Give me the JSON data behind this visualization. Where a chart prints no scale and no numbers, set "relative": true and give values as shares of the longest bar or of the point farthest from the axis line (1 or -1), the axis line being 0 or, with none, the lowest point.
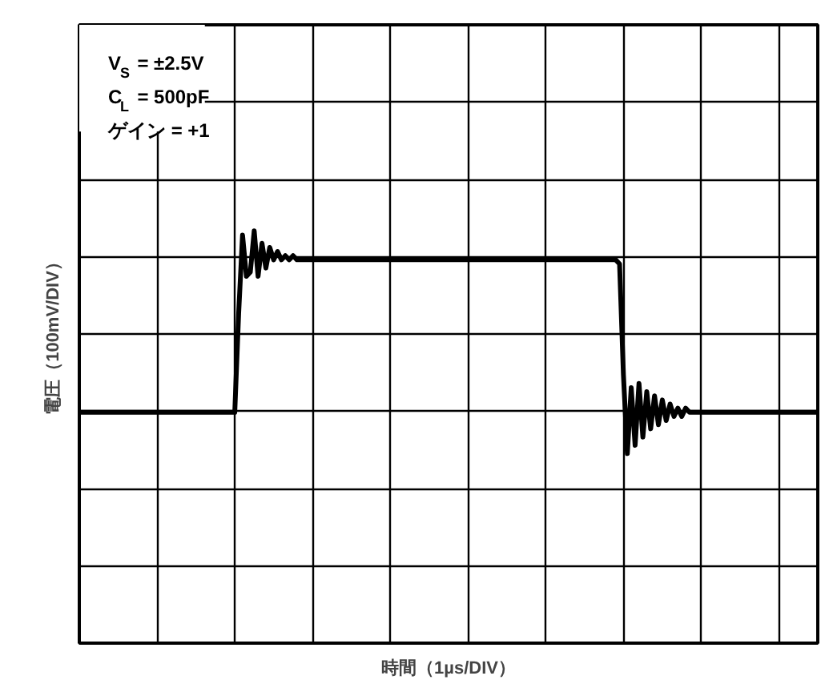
{
  "chart_data": {
    "type": "line",
    "relative": true,
    "xlabel": "時間（1µs/DIV）",
    "ylabel": "電圧（100mV/DIV）",
    "annotations": [
      "V$_{S}$ = ±2.5V",
      "C$_{L}$ = 500pF",
      "ゲイン = +1"
    ],
    "categories": [
      null,
      null,
      null,
      null,
      null,
      null,
      null,
      null,
      null,
      null,
      null,
      null,
      null,
      null,
      null,
      null,
      null,
      null,
      null,
      null,
      null,
      null,
      null,
      null,
      null,
      null,
      null,
      null,
      null,
      null,
      null,
      null,
      null,
      null,
      null,
      null,
      null,
      null,
      null,
      null,
      null,
      null,
      null,
      null,
      null,
      null,
      null,
      null,
      null,
      null,
      null,
      null,
      null,
      null,
      null,
      null,
      null,
      null,
      null,
      null,
      null,
      null,
      null,
      null,
      null,
      null,
      null,
      null,
      null,
      null,
      null,
      null,
      null,
      null,
      null,
      null,
      null,
      null,
      null,
      null,
      null,
      null,
      null,
      null,
      null,
      null,
      null,
      null,
      null,
      null,
      null,
      null,
      null,
      null,
      null,
      null,
      null,
      null,
      null,
      null,
      null,
      null,
      null,
      null,
      null,
      null,
      null,
      null,
      null,
      null,
      null,
      null,
      null,
      null,
      null,
      null,
      null,
      null,
      null,
      null,
      null,
      null,
      null,
      null,
      null,
      null,
      null,
      null,
      null,
      null,
      null,
      null,
      null,
      null,
      null,
      null,
      null,
      null,
      null,
      null,
      null,
      null,
      null,
      null,
      null,
      null,
      null,
      null,
      null,
      null,
      null,
      null,
      null,
      null,
      null,
      null,
      null,
      null,
      null,
      null,
      null,
      null,
      null,
      null,
      null,
      null,
      null,
      null,
      null,
      null,
      null,
      null,
      null,
      null,
      null,
      null,
      null,
      null,
      null,
      null,
      null,
      null,
      null,
      null,
      null,
      null,
      null,
      null,
      null,
      null,
      null
    ],
    "series": [
      {
        "color": "#000000",
        "values": [
          0.56,
          0.56,
          0.56,
          0.56,
          0.56,
          0.56,
          0.56,
          0.56,
          0.56,
          0.56,
          0.56,
          0.56,
          0.56,
          0.56,
          0.56,
          0.56,
          0.56,
          0.56,
          0.56,
          0.56,
          0.56,
          0.56,
          0.56,
          0.56,
          0.56,
          0.56,
          0.56,
          0.56,
          0.56,
          0.56,
          0.56,
          0.56,
          0.56,
          0.56,
          0.56,
          0.56,
          0.56,
          0.56,
          0.56,
          0.56,
          0.56,
          0.8,
          0.99,
          0.89,
          0.9,
          1.0,
          0.89,
          0.97,
          0.91,
          0.96,
          0.93,
          0.95,
          0.93,
          0.94,
          0.93,
          0.94,
          0.93,
          0.93,
          0.93,
          0.93,
          0.93,
          0.93,
          0.93,
          0.93,
          0.93,
          0.93,
          0.93,
          0.93,
          0.93,
          0.93,
          0.93,
          0.93,
          0.93,
          0.93,
          0.93,
          0.93,
          0.93,
          0.93,
          0.93,
          0.93,
          0.93,
          0.93,
          0.93,
          0.93,
          0.93,
          0.93,
          0.93,
          0.93,
          0.93,
          0.93,
          0.93,
          0.93,
          0.93,
          0.93,
          0.93,
          0.93,
          0.93,
          0.93,
          0.93,
          0.93,
          0.93,
          0.93,
          0.93,
          0.93,
          0.93,
          0.93,
          0.93,
          0.93,
          0.93,
          0.93,
          0.93,
          0.93,
          0.93,
          0.93,
          0.93,
          0.93,
          0.93,
          0.93,
          0.93,
          0.93,
          0.93,
          0.93,
          0.93,
          0.93,
          0.93,
          0.93,
          0.93,
          0.93,
          0.93,
          0.93,
          0.93,
          0.93,
          0.93,
          0.93,
          0.93,
          0.93,
          0.93,
          0.93,
          0.93,
          0.92,
          0.65,
          0.46,
          0.62,
          0.48,
          0.63,
          0.5,
          0.61,
          0.52,
          0.6,
          0.53,
          0.59,
          0.54,
          0.58,
          0.55,
          0.57,
          0.55,
          0.57,
          0.56,
          0.56,
          0.56,
          0.56,
          0.56,
          0.56,
          0.56,
          0.56,
          0.56,
          0.56,
          0.56,
          0.56,
          0.56,
          0.56,
          0.56,
          0.56,
          0.56,
          0.56,
          0.56,
          0.56,
          0.56,
          0.56,
          0.56,
          0.56,
          0.56,
          0.56,
          0.56,
          0.56,
          0.56,
          0.56,
          0.56,
          0.56,
          0.56,
          0.56
        ]
      }
    ],
    "grid": true,
    "marker": "none",
    "line_style": "solid"
  }
}
